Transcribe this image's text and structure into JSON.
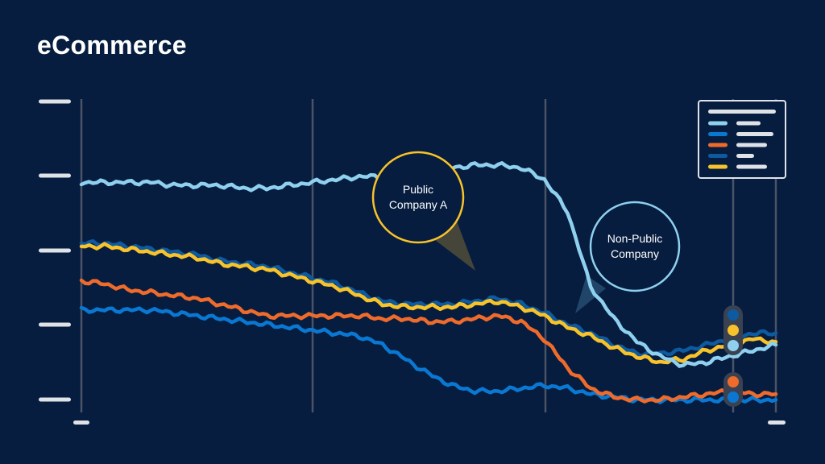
{
  "header": {
    "title": "eCommerce"
  },
  "colors": {
    "background": "#061d3f",
    "axis_line": "#4a5466",
    "placeholder": "#dfe3e8",
    "light_blue": "#8fd0ee",
    "blue": "#0a78d2",
    "orange": "#ef6b2c",
    "dark_blue": "#0d5aa0",
    "yellow": "#f8c22b"
  },
  "chart_data": {
    "type": "line",
    "title": "eCommerce",
    "xlabel": "",
    "ylabel": "",
    "axis_labels_shown": false,
    "grid": "vertical",
    "legend": "top-right",
    "x": [
      0,
      10,
      20,
      30,
      40,
      50,
      60,
      70,
      80,
      90,
      100,
      110,
      120,
      130,
      140,
      150,
      160,
      170,
      180,
      190,
      200,
      210,
      220,
      230,
      240,
      250,
      260,
      270,
      280,
      290,
      300
    ],
    "series": [
      {
        "key": "light_blue",
        "color": "#8fd0ee",
        "values": [
          76,
          76,
          76,
          76,
          75,
          75,
          75,
          74,
          74,
          75,
          76,
          77,
          78,
          78,
          79,
          80,
          81,
          82,
          82,
          81,
          77,
          66,
          40,
          29,
          21,
          16,
          13,
          14,
          16,
          18,
          20
        ]
      },
      {
        "key": "dark_blue",
        "color": "#0d5aa0",
        "values": [
          55,
          55,
          54,
          53,
          52,
          51,
          49,
          48,
          47,
          45,
          43,
          41,
          38,
          35,
          34,
          34,
          34,
          35,
          36,
          34,
          31,
          27,
          24,
          20,
          17,
          17,
          18,
          20,
          22,
          24,
          24
        ]
      },
      {
        "key": "yellow",
        "color": "#f8c22b",
        "values": [
          54,
          54,
          53,
          52,
          51,
          50,
          48,
          47,
          46,
          44,
          42,
          40,
          37,
          34,
          33,
          33,
          33,
          34,
          35,
          33,
          30,
          26,
          23,
          19,
          16,
          14,
          15,
          18,
          20,
          22,
          21
        ]
      },
      {
        "key": "orange",
        "color": "#ef6b2c",
        "values": [
          42,
          41,
          39,
          38,
          37,
          36,
          34,
          32,
          30,
          30,
          30,
          30,
          30,
          29,
          29,
          28,
          28,
          29,
          30,
          28,
          22,
          12,
          5,
          2,
          1,
          1,
          2,
          3,
          4,
          3,
          3
        ]
      },
      {
        "key": "blue",
        "color": "#0a78d2",
        "values": [
          32,
          32,
          32,
          32,
          31,
          30,
          29,
          28,
          27,
          26,
          25,
          24,
          23,
          20,
          15,
          10,
          6,
          4,
          4,
          5,
          6,
          5,
          3,
          2,
          1,
          1,
          1,
          1,
          1,
          1,
          1
        ]
      }
    ],
    "callouts": [
      {
        "text": [
          "Public",
          "Company A"
        ],
        "color": "#f8c22b"
      },
      {
        "text": [
          "Non-Public",
          "Company"
        ],
        "color": "#8fd0ee"
      }
    ],
    "legend_series": [
      "light_blue",
      "blue",
      "orange",
      "dark_blue",
      "yellow"
    ],
    "end_markers": [
      "dark_blue",
      "yellow",
      "light_blue",
      "orange",
      "blue"
    ]
  }
}
